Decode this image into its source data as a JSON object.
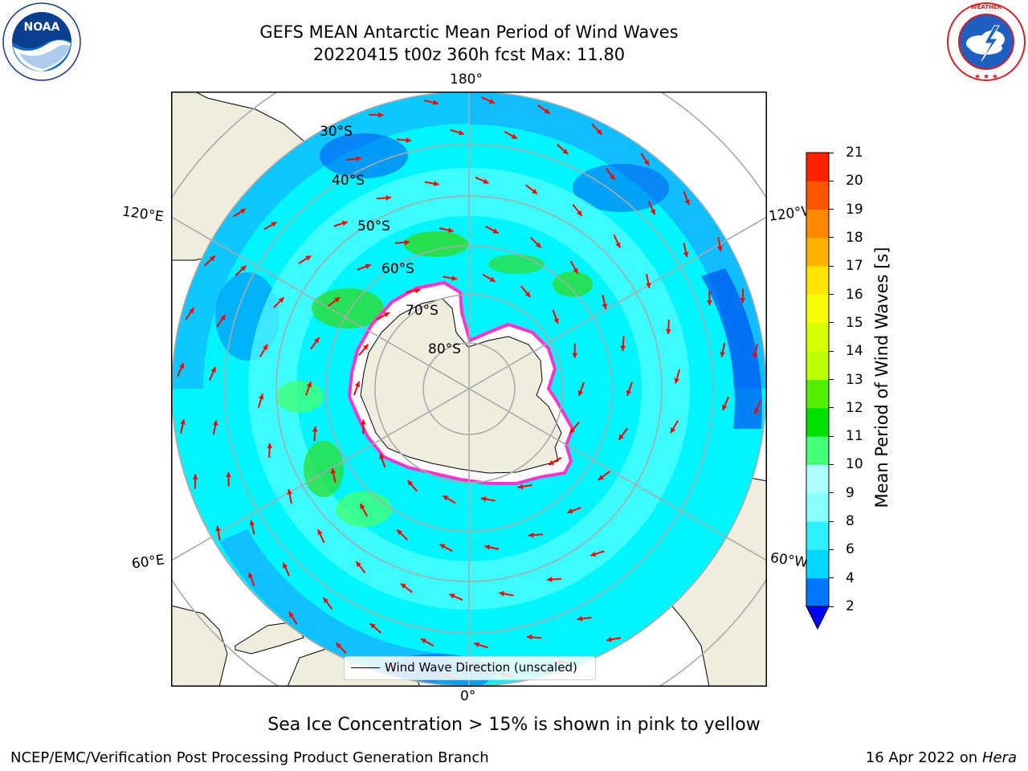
{
  "header": {
    "title_line1": "GEFS MEAN Antarctic Mean Period of Wind Waves",
    "title_line2": "20220415 t00z 360h fcst   Max: 11.80"
  },
  "logos": {
    "left": "NOAA",
    "left_ring_text": "NATIONAL OCEANIC AND ATMOSPHERIC ADMINISTRATION · U.S. DEPARTMENT OF COMMERCE",
    "right_ring_text": "NATIONAL WEATHER SERVICE"
  },
  "map": {
    "longitude_labels": {
      "top": "180°",
      "left_upper": "120°E",
      "right_upper": "120°W",
      "left_lower": "60°E",
      "right_lower": "60°W",
      "bottom": "0°"
    },
    "latitude_labels": [
      "30°S",
      "40°S",
      "50°S",
      "60°S",
      "70°S",
      "80°S"
    ],
    "colors": {
      "land": "#efedde",
      "ocean_high": "#00f5ff",
      "ocean_mid": "#56ffff",
      "ocean_low": "#1e90ff",
      "ocean_very_low": "#0050f0",
      "green_patch": "#2edc2e",
      "ice": "#ffffff",
      "ice_edge": "#ff33cc",
      "arrow": "#ff0000",
      "grid": "#aaaaaa"
    },
    "legend_label": "Wind Wave Direction (unscaled)"
  },
  "colorbar": {
    "label": "Mean Period of Wind Waves [s]",
    "ticks": [
      "2",
      "4",
      "6",
      "8",
      "9",
      "10",
      "11",
      "12",
      "13",
      "14",
      "15",
      "16",
      "17",
      "18",
      "19",
      "20",
      "21"
    ],
    "colors": [
      "#0000ff",
      "#0077ff",
      "#00d8ff",
      "#30f0ff",
      "#88ffff",
      "#b0ffff",
      "#44ff77",
      "#00e000",
      "#55ee00",
      "#bbff00",
      "#d8ff00",
      "#f8ff00",
      "#ffe400",
      "#ffb300",
      "#ff8800",
      "#ff5500",
      "#ff2200",
      "#ff0000"
    ]
  },
  "footer": {
    "note": "Sea Ice Concentration > 15% is shown in pink to yellow",
    "left": "NCEP/EMC/Verification Post Processing Product Generation Branch",
    "right_date": "16 Apr 2022 on ",
    "right_machine": "Hera"
  }
}
